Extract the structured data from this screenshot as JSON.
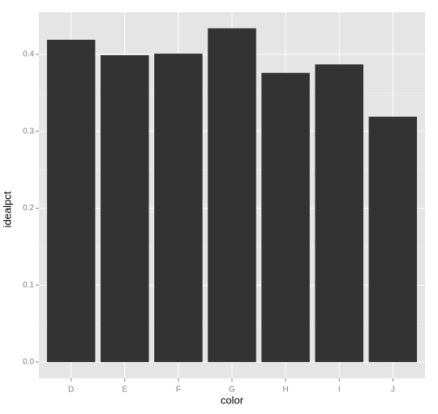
{
  "chart_data": {
    "type": "bar",
    "x_label": "color",
    "y_label": "idealpct",
    "categories": [
      "D",
      "E",
      "F",
      "G",
      "H",
      "I",
      "J"
    ],
    "values": [
      0.419,
      0.399,
      0.401,
      0.434,
      0.376,
      0.387,
      0.319
    ],
    "color": "#333333",
    "ylim": [
      -0.0211,
      0.4549
    ],
    "yticks": [
      {
        "value": 0,
        "label": "0.0"
      },
      0.1,
      0.2,
      0.3,
      0.4
    ],
    "grid": true
  }
}
